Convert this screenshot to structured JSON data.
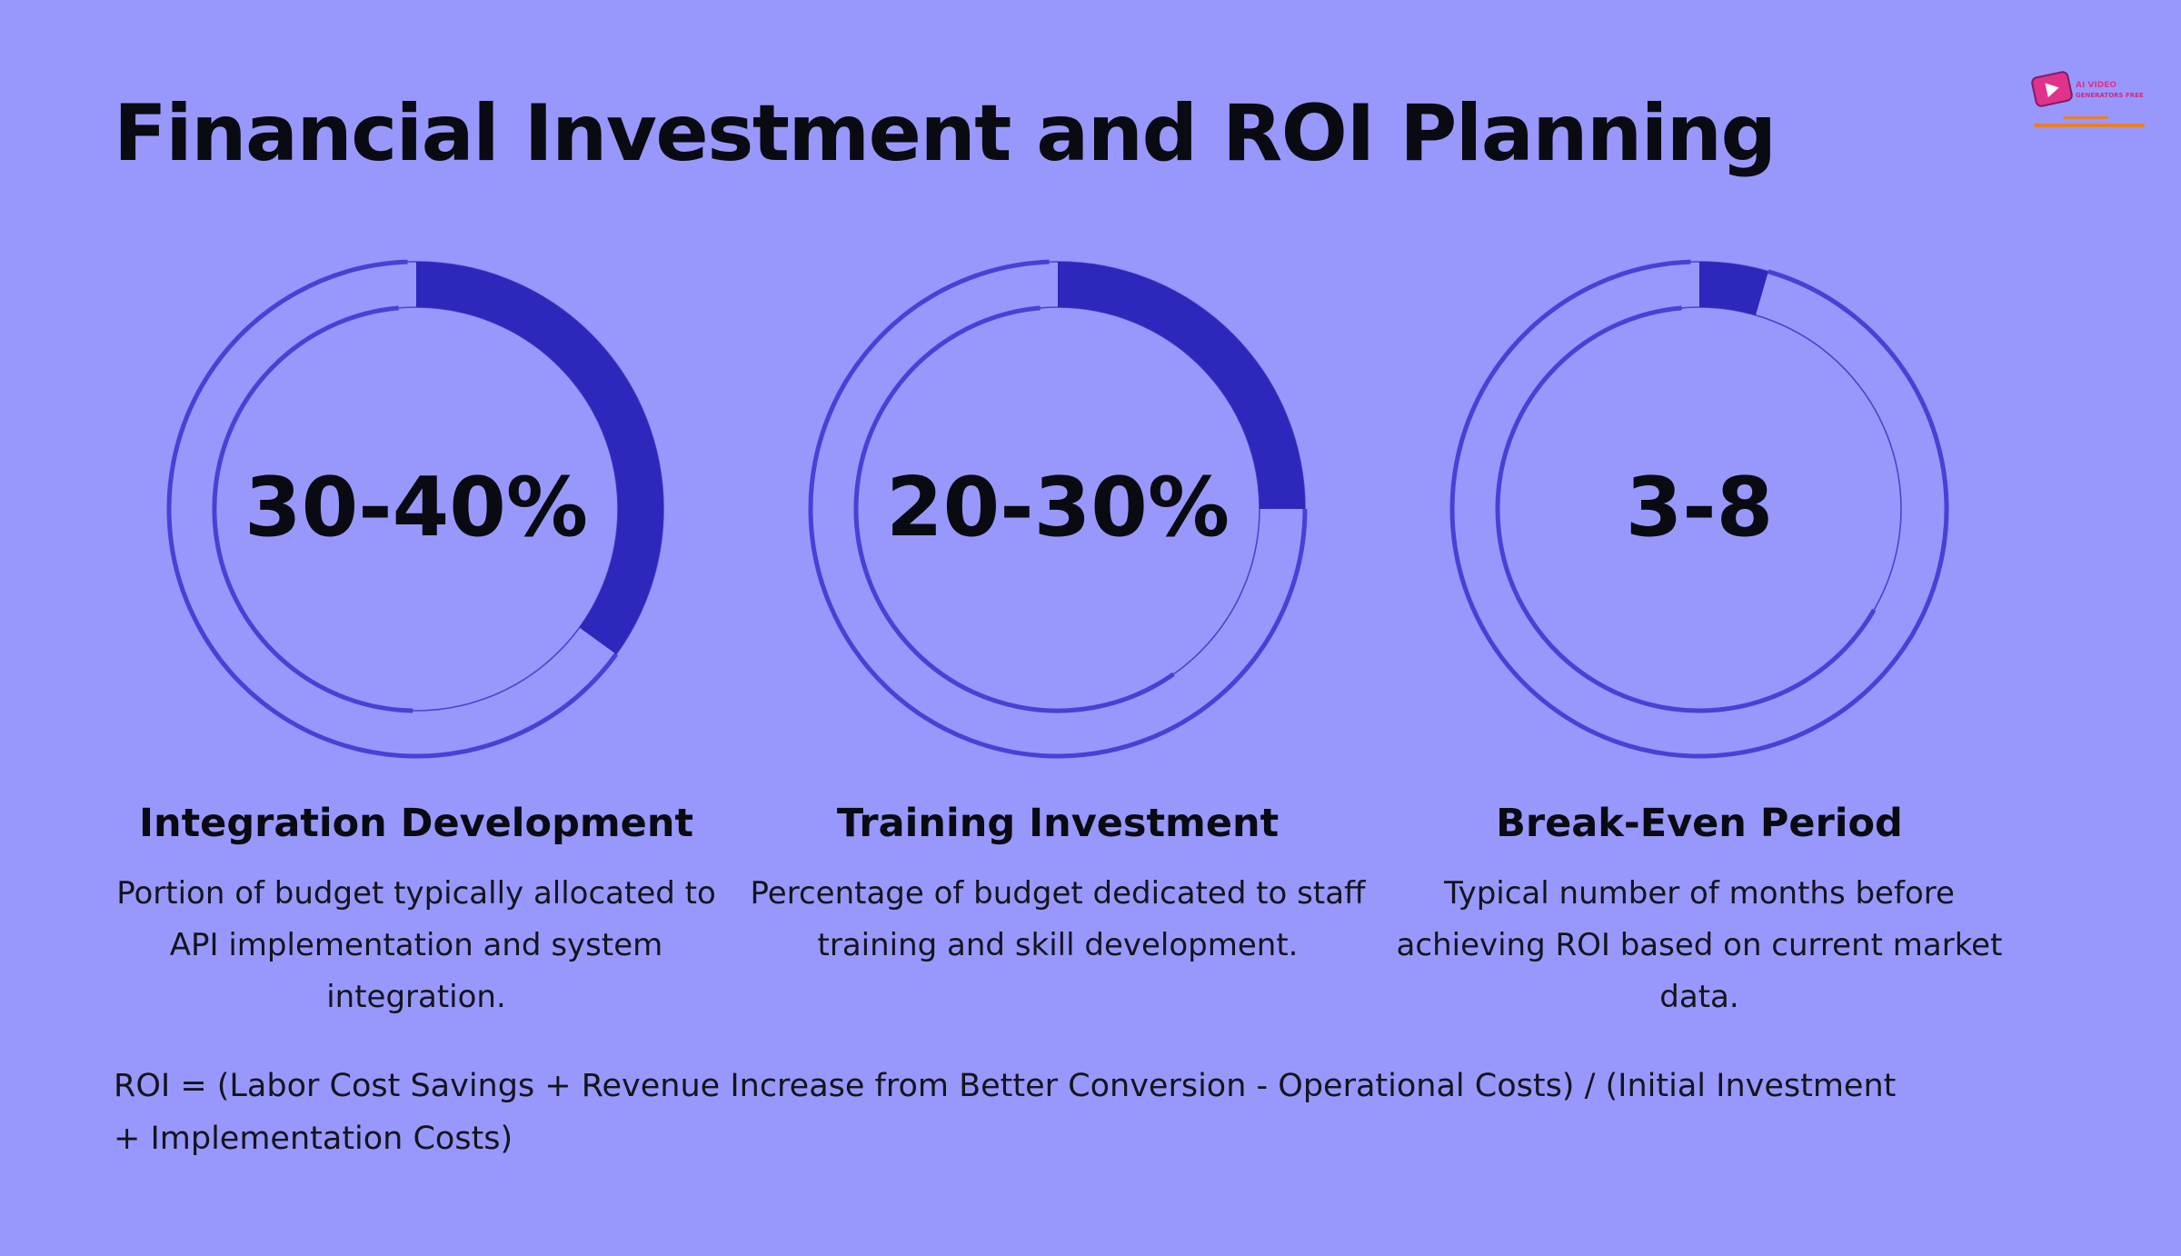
{
  "page": {
    "title": "Financial Investment and ROI Planning",
    "formula": "ROI = (Labor Cost Savings + Revenue Increase from Better Conversion - Operational Costs) / (Initial Investment + Implementation Costs)"
  },
  "logo": {
    "icon": "play-button-logo-icon",
    "line1": "AI VIDEO",
    "line2": "GENERATORS FREE"
  },
  "colors": {
    "background": "#9898fc",
    "ring_fill": "#2d27bc",
    "ring_stroke": "#4a40d6",
    "ring_thin": "#4c44cc",
    "text": "#0a0a12"
  },
  "chart_data": [
    {
      "type": "pie",
      "value": "30-40%",
      "fill_fraction": 0.35,
      "title": "Integration Development",
      "description": "Portion of budget typically allocated to API implementation and system integration."
    },
    {
      "type": "pie",
      "value": "20-30%",
      "fill_fraction": 0.25,
      "title": "Training Investment",
      "description": "Percentage of budget dedicated to staff training and skill development."
    },
    {
      "type": "pie",
      "value": "3-8",
      "fill_fraction": 0.045,
      "title": "Break-Even Period",
      "description": "Typical number of months before achieving ROI based on current market data."
    }
  ]
}
